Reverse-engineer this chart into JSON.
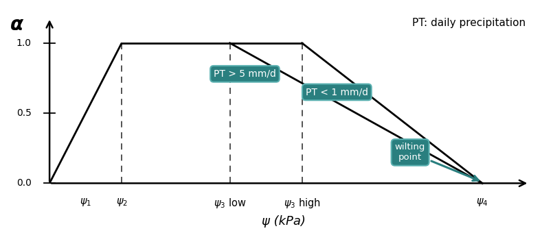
{
  "title": "PT: daily precipitation",
  "xlabel": "ψ (kPa)",
  "ylabel": "α",
  "x_positions": {
    "psi1": 1,
    "psi2": 2,
    "psi3low": 5,
    "psi3high": 7,
    "psi4": 12
  },
  "y_max": 1.0,
  "line_color": "black",
  "line_width": 2.0,
  "dashed_color": "#444444",
  "dashed_lw": 1.3,
  "box_color": "#2a7f7f",
  "box_text_color": "white",
  "label_PT_gt5": "PT > 5 mm/d",
  "label_PT_lt1": "PT < 1 mm/d",
  "label_wilting": "wilting\npoint",
  "yticks": [
    0.0,
    0.5,
    1.0
  ],
  "ytick_labels": [
    "0.0",
    "0.5",
    "1.0"
  ],
  "background": "white",
  "xlim": [
    -0.3,
    13.5
  ],
  "ylim": [
    -0.12,
    1.22
  ]
}
